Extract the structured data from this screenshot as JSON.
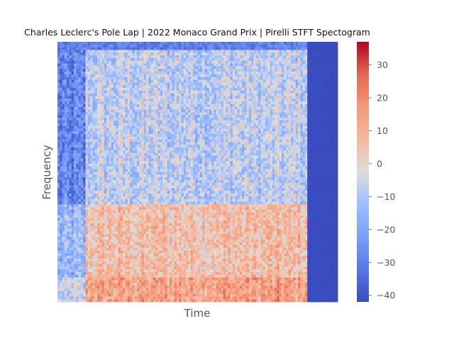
{
  "chart_data": {
    "type": "heatmap",
    "title": "Charles Leclerc's Pole Lap | 2022 Monaco Grand Prix | Pirelli STFT Spectogram",
    "xlabel": "Time",
    "ylabel": "Frequency",
    "x_ticks": [],
    "y_ticks": [],
    "grid": false,
    "colormap": "coolwarm",
    "colorbar": {
      "vmin": -42,
      "vmax": 37,
      "ticks": [
        -40,
        -30,
        -20,
        -10,
        0,
        10,
        20,
        30
      ],
      "tick_labels": [
        "−40",
        "−30",
        "−20",
        "−10",
        "0",
        "10",
        "20",
        "30"
      ]
    },
    "description_values": {
      "signal_end_fraction_of_time": 0.89,
      "silent_region_level": -42,
      "quiet_early_band_fraction": [
        0.0,
        0.1
      ],
      "low_frequency_level": 22,
      "upper_frequency_level": -8
    }
  }
}
